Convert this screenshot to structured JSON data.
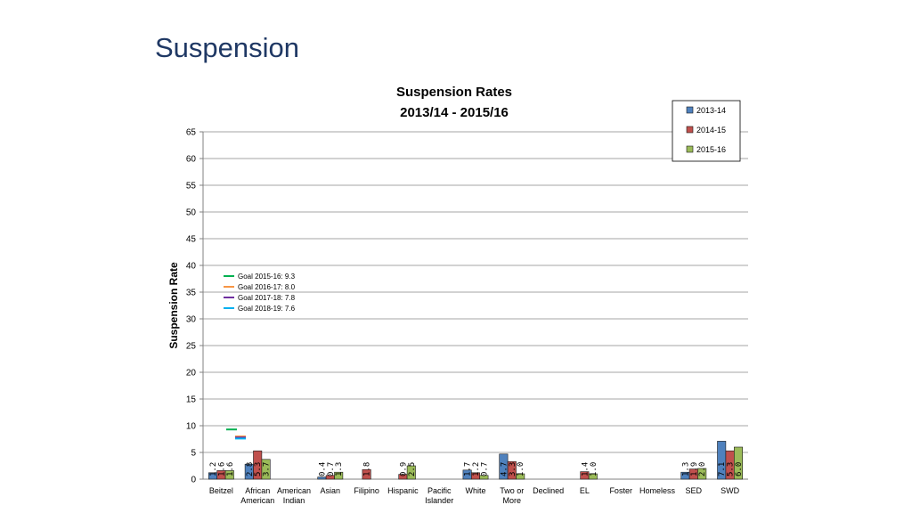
{
  "page": {
    "title": "Suspension"
  },
  "chart_data": {
    "type": "bar",
    "title": "Suspension Rates",
    "subtitle": "2013/14 - 2015/16",
    "ylabel": "Suspension Rate",
    "xlabel": "",
    "ylim": [
      0,
      65
    ],
    "yticks": [
      0,
      5,
      10,
      15,
      20,
      25,
      30,
      35,
      40,
      45,
      50,
      55,
      60,
      65
    ],
    "grid": true,
    "legend_position": "top-right",
    "categories": [
      [
        "Beitzel"
      ],
      [
        "African",
        "American"
      ],
      [
        "American",
        "Indian"
      ],
      [
        "Asian"
      ],
      [
        "Filipino"
      ],
      [
        "Hispanic"
      ],
      [
        "Pacific",
        "Islander"
      ],
      [
        "White"
      ],
      [
        "Two or",
        "More"
      ],
      [
        "Declined"
      ],
      [
        "EL"
      ],
      [
        "Foster"
      ],
      [
        "Homeless"
      ],
      [
        "SED"
      ],
      [
        "SWD"
      ]
    ],
    "series": [
      {
        "name": "2013-14",
        "color": "#4f81bd",
        "values": [
          1.2,
          2.8,
          null,
          0.4,
          null,
          null,
          null,
          1.7,
          4.7,
          null,
          null,
          null,
          null,
          1.3,
          7.1
        ],
        "labels": [
          "1.2",
          "2.8",
          "",
          "0.4",
          "",
          "",
          "",
          "1.7",
          "4.7",
          "",
          "",
          "",
          "",
          "1.3",
          "7.1"
        ]
      },
      {
        "name": "2014-15",
        "color": "#c0504d",
        "values": [
          1.6,
          5.3,
          null,
          0.7,
          1.8,
          0.9,
          null,
          1.2,
          3.3,
          null,
          1.4,
          null,
          null,
          1.9,
          5.3
        ],
        "labels": [
          "1.6",
          "5.3",
          "",
          "0.7",
          "1.8",
          "0.9",
          "",
          "1.2",
          "3.3",
          "",
          "1.4",
          "",
          "",
          "1.9",
          "5.3"
        ]
      },
      {
        "name": "2015-16",
        "color": "#9bbb59",
        "values": [
          1.6,
          3.7,
          null,
          1.3,
          null,
          2.5,
          null,
          0.7,
          1.0,
          null,
          1.0,
          null,
          null,
          2.0,
          6.0
        ],
        "labels": [
          "1.6",
          "3.7",
          "",
          "1.3",
          "",
          "2.5",
          "",
          "0.7",
          "1.0",
          "",
          "1.0",
          "",
          "",
          "2.0",
          "6.0"
        ]
      }
    ],
    "goals": [
      {
        "label": "Goal 2015-16: 9.3",
        "value": 9.3,
        "color": "#00b050"
      },
      {
        "label": "Goal 2016-17: 8.0",
        "value": 8.0,
        "color": "#f79646"
      },
      {
        "label": "Goal 2017-18: 7.8",
        "value": 7.8,
        "color": "#7030a0"
      },
      {
        "label": "Goal 2018-19: 7.6",
        "value": 7.6,
        "color": "#00b0f0"
      }
    ]
  }
}
